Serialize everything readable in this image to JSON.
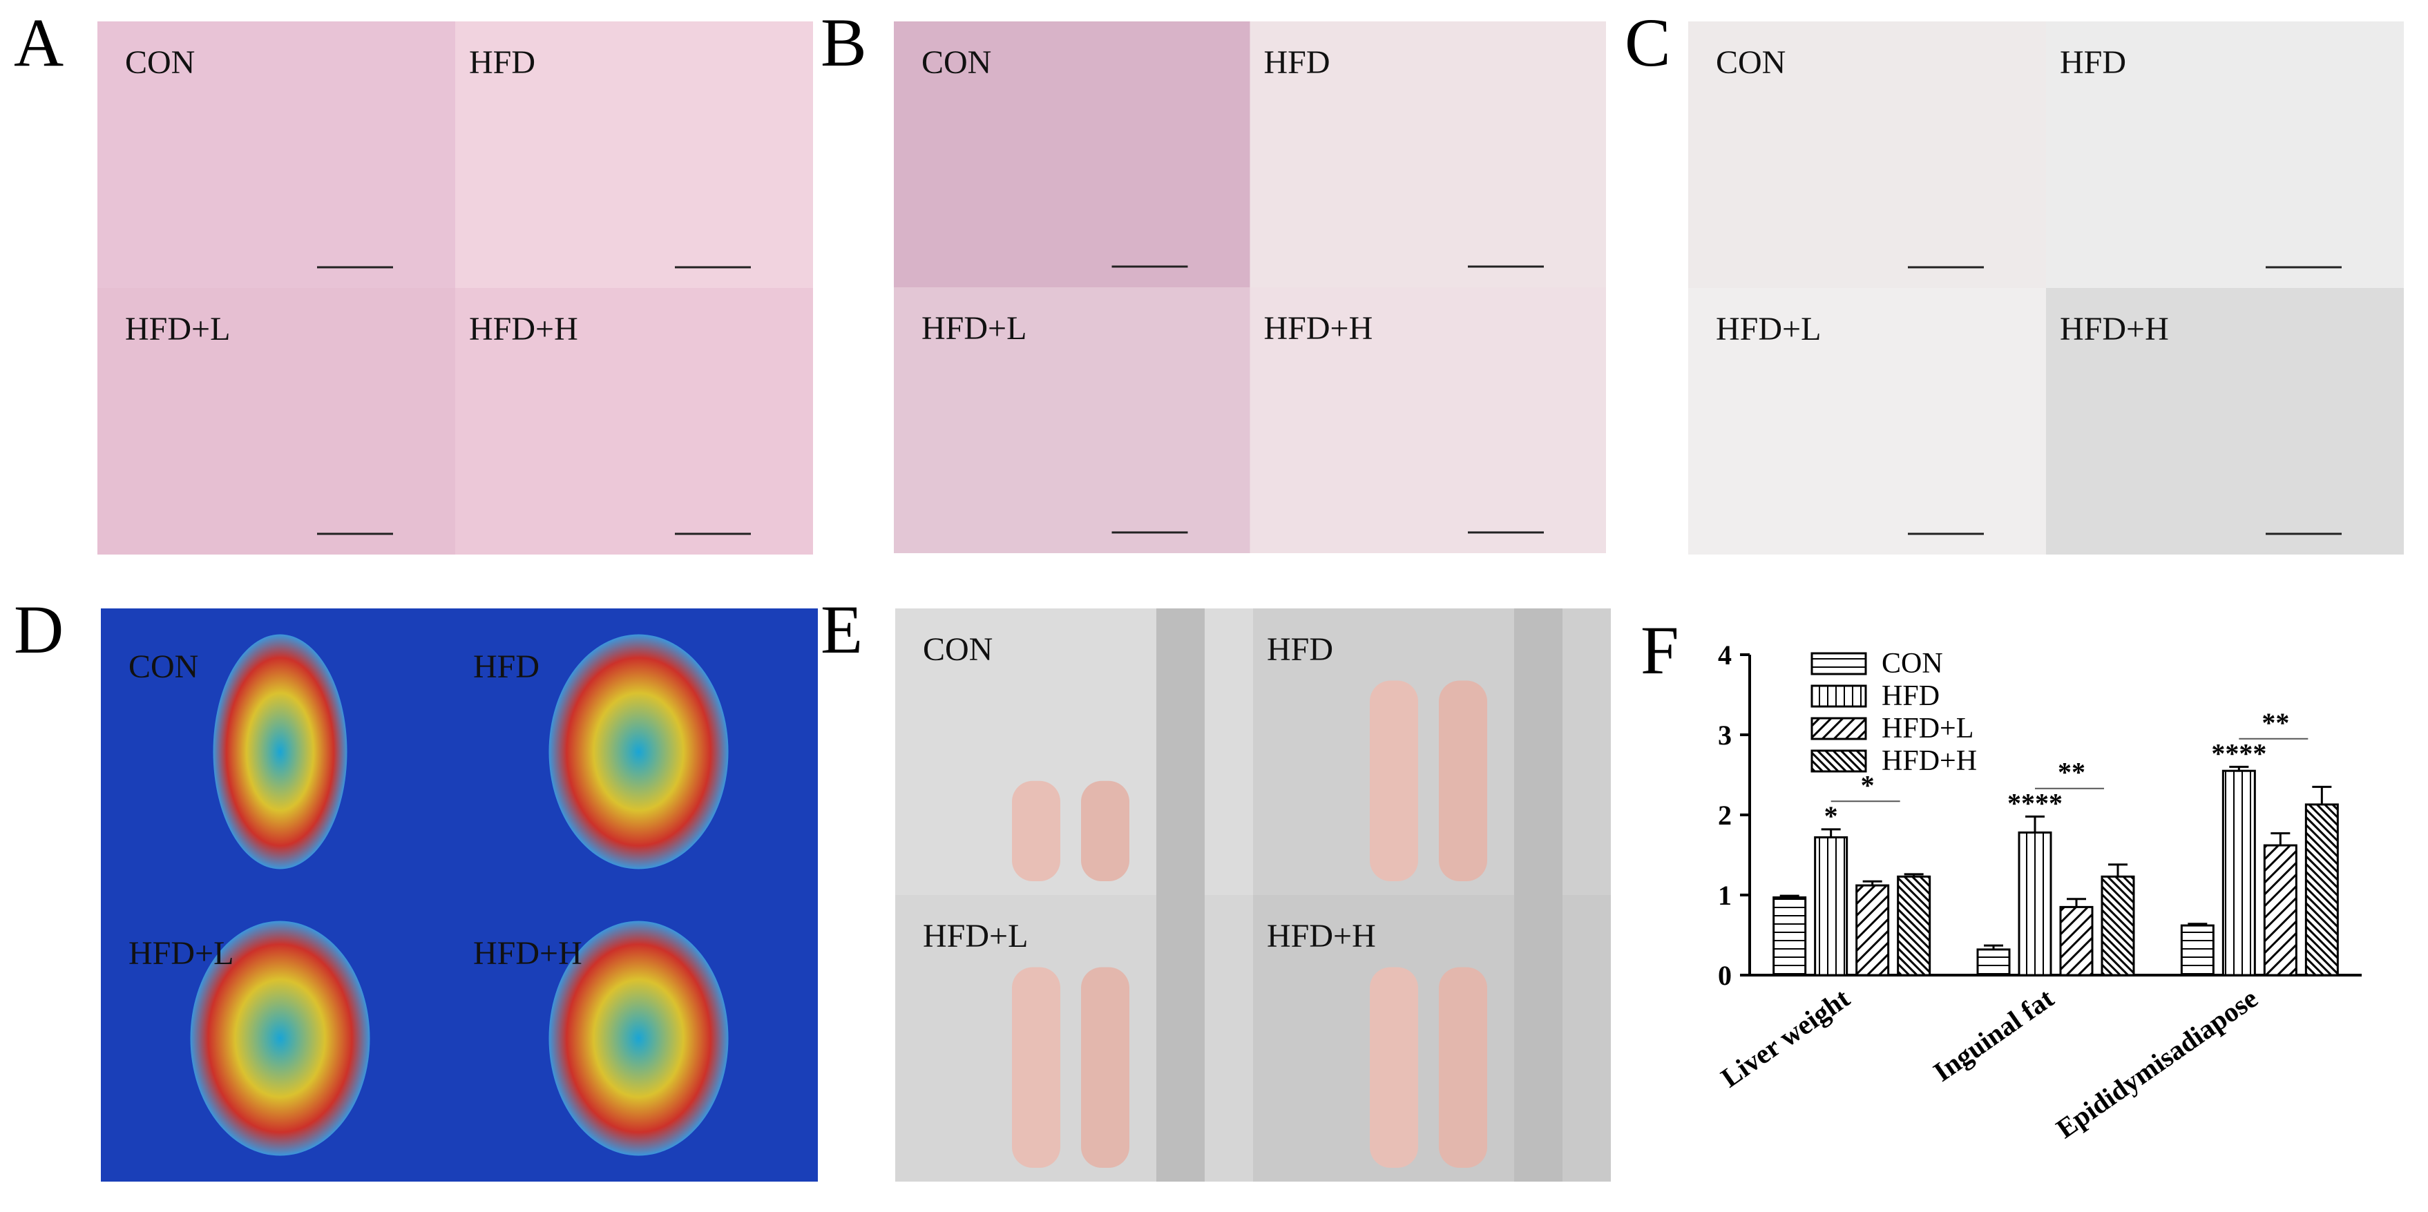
{
  "panels": [
    {
      "letter": "A",
      "labels": [
        "CON",
        "HFD",
        "HFD+L",
        "HFD+H"
      ]
    },
    {
      "letter": "B",
      "labels": [
        "CON",
        "HFD",
        "HFD+L",
        "HFD+H"
      ]
    },
    {
      "letter": "C",
      "labels": [
        "CON",
        "HFD",
        "HFD+L",
        "HFD+H"
      ]
    },
    {
      "letter": "D",
      "labels": [
        "CON",
        "HFD",
        "HFD+L",
        "HFD+H"
      ]
    },
    {
      "letter": "E",
      "labels": [
        "CON",
        "HFD",
        "HFD+L",
        "HFD+H"
      ]
    }
  ],
  "chart_data": {
    "type": "bar",
    "letter": "F",
    "categories": [
      "Liver weight",
      "Inguinal fat",
      "Epididymisadiapose"
    ],
    "series": [
      {
        "name": "CON",
        "color": "#000000",
        "pattern": "horizontal",
        "values": [
          0.97,
          0.32,
          0.62
        ],
        "errors": [
          0.02,
          0.05,
          0.02
        ]
      },
      {
        "name": "HFD",
        "color": "#000000",
        "pattern": "vertical",
        "values": [
          1.72,
          1.78,
          2.55
        ],
        "errors": [
          0.1,
          0.2,
          0.05
        ]
      },
      {
        "name": "HFD+L",
        "color": "#000000",
        "pattern": "diagonal",
        "values": [
          1.12,
          0.85,
          1.62
        ],
        "errors": [
          0.05,
          0.1,
          0.15
        ]
      },
      {
        "name": "HFD+H",
        "color": "#000000",
        "pattern": "diagonal-dense",
        "values": [
          1.23,
          1.23,
          2.13
        ],
        "errors": [
          0.03,
          0.15,
          0.22
        ]
      }
    ],
    "annotations": {
      "above_hfd": [
        "*",
        "****",
        "****"
      ],
      "hfd_vs_hfd_l": [
        "*",
        "**",
        "**"
      ]
    },
    "ylim": [
      0,
      4
    ],
    "yticks": [
      0,
      1,
      2,
      3,
      4
    ],
    "grid": false,
    "legend": "upper-left"
  }
}
